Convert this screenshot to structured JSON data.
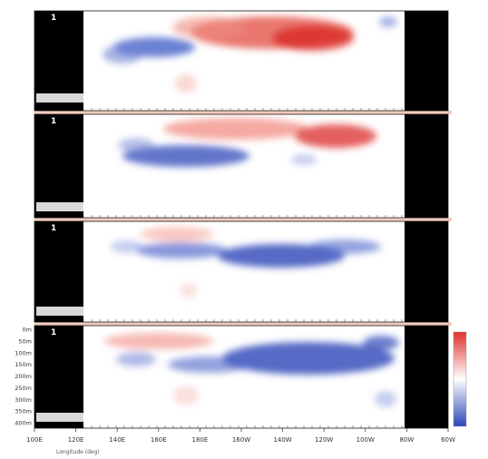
{
  "chart_data": {
    "type": "heatmap",
    "x_tick_labels": [
      "100E",
      "120E",
      "140E",
      "160E",
      "180E",
      "160W",
      "140W",
      "120W",
      "100W",
      "80W",
      "60W"
    ],
    "x_caption": "Longitude (deg)",
    "y_tick_labels": [
      "0m",
      "50m",
      "100m",
      "150m",
      "200m",
      "250m",
      "300m",
      "350m",
      "400m"
    ],
    "panels": [
      {
        "id": "A",
        "label": "1"
      },
      {
        "id": "B",
        "label": "1"
      },
      {
        "id": "C",
        "label": "1"
      },
      {
        "id": "D",
        "label": "1"
      }
    ],
    "colorbar": {
      "max_color": "#e0302c",
      "mid_color": "#ffffff",
      "min_color": "#2c46b8"
    },
    "colors": {
      "positive": "#e0302c",
      "negative": "#2c46b8",
      "land": "#000000",
      "separator": "#f2c9bb"
    }
  }
}
